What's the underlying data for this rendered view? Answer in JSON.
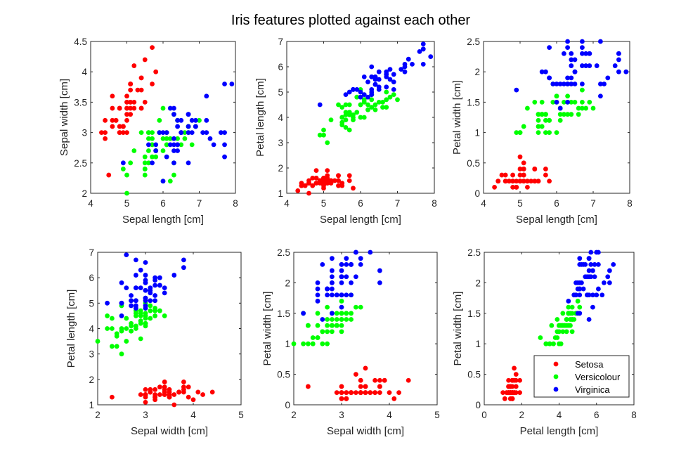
{
  "figure": {
    "title": "Iris features plotted against each other"
  },
  "colors": {
    "Setosa": "#ff0000",
    "Versicolour": "#00ff00",
    "Virginica": "#0000ff"
  },
  "legend": {
    "placement": "bottom-right of last subplot",
    "entries": [
      "Setosa",
      "Versicolour",
      "Virginica"
    ]
  },
  "iris": {
    "Setosa": [
      [
        5.1,
        3.5,
        1.4,
        0.2
      ],
      [
        4.9,
        3.0,
        1.4,
        0.2
      ],
      [
        4.7,
        3.2,
        1.3,
        0.2
      ],
      [
        4.6,
        3.1,
        1.5,
        0.2
      ],
      [
        5.0,
        3.6,
        1.4,
        0.2
      ],
      [
        5.4,
        3.9,
        1.7,
        0.4
      ],
      [
        4.6,
        3.4,
        1.4,
        0.3
      ],
      [
        5.0,
        3.4,
        1.5,
        0.2
      ],
      [
        4.4,
        2.9,
        1.4,
        0.2
      ],
      [
        4.9,
        3.1,
        1.5,
        0.1
      ],
      [
        5.4,
        3.7,
        1.5,
        0.2
      ],
      [
        4.8,
        3.4,
        1.6,
        0.2
      ],
      [
        4.8,
        3.0,
        1.4,
        0.1
      ],
      [
        4.3,
        3.0,
        1.1,
        0.1
      ],
      [
        5.8,
        4.0,
        1.2,
        0.2
      ],
      [
        5.7,
        4.4,
        1.5,
        0.4
      ],
      [
        5.4,
        3.9,
        1.3,
        0.4
      ],
      [
        5.1,
        3.5,
        1.4,
        0.3
      ],
      [
        5.7,
        3.8,
        1.7,
        0.3
      ],
      [
        5.1,
        3.8,
        1.5,
        0.3
      ],
      [
        5.4,
        3.4,
        1.7,
        0.2
      ],
      [
        5.1,
        3.7,
        1.5,
        0.4
      ],
      [
        4.6,
        3.6,
        1.0,
        0.2
      ],
      [
        5.1,
        3.3,
        1.7,
        0.5
      ],
      [
        4.8,
        3.4,
        1.9,
        0.2
      ],
      [
        5.0,
        3.0,
        1.6,
        0.2
      ],
      [
        5.0,
        3.4,
        1.6,
        0.4
      ],
      [
        5.2,
        3.5,
        1.5,
        0.2
      ],
      [
        5.2,
        3.4,
        1.4,
        0.2
      ],
      [
        4.7,
        3.2,
        1.6,
        0.2
      ],
      [
        4.8,
        3.1,
        1.6,
        0.2
      ],
      [
        5.4,
        3.4,
        1.5,
        0.4
      ],
      [
        5.2,
        4.1,
        1.5,
        0.1
      ],
      [
        5.5,
        4.2,
        1.4,
        0.2
      ],
      [
        4.9,
        3.1,
        1.5,
        0.1
      ],
      [
        5.0,
        3.2,
        1.2,
        0.2
      ],
      [
        5.5,
        3.5,
        1.3,
        0.2
      ],
      [
        4.9,
        3.1,
        1.5,
        0.1
      ],
      [
        4.4,
        3.0,
        1.3,
        0.2
      ],
      [
        5.1,
        3.4,
        1.5,
        0.2
      ],
      [
        5.0,
        3.5,
        1.3,
        0.3
      ],
      [
        4.5,
        2.3,
        1.3,
        0.3
      ],
      [
        4.4,
        3.2,
        1.3,
        0.2
      ],
      [
        5.0,
        3.5,
        1.6,
        0.6
      ],
      [
        5.1,
        3.8,
        1.9,
        0.4
      ],
      [
        4.8,
        3.0,
        1.4,
        0.3
      ],
      [
        5.1,
        3.8,
        1.6,
        0.2
      ],
      [
        4.6,
        3.2,
        1.4,
        0.2
      ],
      [
        5.3,
        3.7,
        1.5,
        0.2
      ],
      [
        5.0,
        3.3,
        1.4,
        0.2
      ]
    ],
    "Versicolour": [
      [
        7.0,
        3.2,
        4.7,
        1.4
      ],
      [
        6.4,
        3.2,
        4.5,
        1.5
      ],
      [
        6.9,
        3.1,
        4.9,
        1.5
      ],
      [
        5.5,
        2.3,
        4.0,
        1.3
      ],
      [
        6.5,
        2.8,
        4.6,
        1.5
      ],
      [
        5.7,
        2.8,
        4.5,
        1.3
      ],
      [
        6.3,
        3.3,
        4.7,
        1.6
      ],
      [
        4.9,
        2.4,
        3.3,
        1.0
      ],
      [
        6.6,
        2.9,
        4.6,
        1.3
      ],
      [
        5.2,
        2.7,
        3.9,
        1.4
      ],
      [
        5.0,
        2.0,
        3.5,
        1.0
      ],
      [
        5.9,
        3.0,
        4.2,
        1.5
      ],
      [
        6.0,
        2.2,
        4.0,
        1.0
      ],
      [
        6.1,
        2.9,
        4.7,
        1.4
      ],
      [
        5.6,
        2.9,
        3.6,
        1.3
      ],
      [
        6.7,
        3.1,
        4.4,
        1.4
      ],
      [
        5.6,
        3.0,
        4.5,
        1.5
      ],
      [
        5.8,
        2.7,
        4.1,
        1.0
      ],
      [
        6.2,
        2.2,
        4.5,
        1.5
      ],
      [
        5.6,
        2.5,
        3.9,
        1.1
      ],
      [
        5.9,
        3.2,
        4.8,
        1.8
      ],
      [
        6.1,
        2.8,
        4.0,
        1.3
      ],
      [
        6.3,
        2.5,
        4.9,
        1.5
      ],
      [
        6.1,
        2.8,
        4.7,
        1.2
      ],
      [
        6.4,
        2.9,
        4.3,
        1.3
      ],
      [
        6.6,
        3.0,
        4.4,
        1.4
      ],
      [
        6.8,
        2.8,
        4.8,
        1.4
      ],
      [
        6.7,
        3.0,
        5.0,
        1.7
      ],
      [
        6.0,
        2.9,
        4.5,
        1.5
      ],
      [
        5.7,
        2.6,
        3.5,
        1.0
      ],
      [
        5.5,
        2.4,
        3.8,
        1.1
      ],
      [
        5.5,
        2.4,
        3.7,
        1.0
      ],
      [
        5.8,
        2.7,
        3.9,
        1.2
      ],
      [
        6.0,
        2.7,
        5.1,
        1.6
      ],
      [
        5.4,
        3.0,
        4.5,
        1.5
      ],
      [
        6.0,
        3.4,
        4.5,
        1.6
      ],
      [
        6.7,
        3.1,
        4.7,
        1.5
      ],
      [
        6.3,
        2.3,
        4.4,
        1.3
      ],
      [
        5.6,
        3.0,
        4.1,
        1.3
      ],
      [
        5.5,
        2.5,
        4.0,
        1.3
      ],
      [
        5.5,
        2.6,
        4.4,
        1.2
      ],
      [
        6.1,
        3.0,
        4.6,
        1.4
      ],
      [
        5.8,
        2.6,
        4.0,
        1.2
      ],
      [
        5.0,
        2.3,
        3.3,
        1.0
      ],
      [
        5.6,
        2.7,
        4.2,
        1.3
      ],
      [
        5.7,
        3.0,
        4.2,
        1.2
      ],
      [
        5.7,
        2.9,
        4.2,
        1.3
      ],
      [
        6.2,
        2.9,
        4.3,
        1.3
      ],
      [
        5.1,
        2.5,
        3.0,
        1.1
      ],
      [
        5.7,
        2.8,
        4.1,
        1.3
      ]
    ],
    "Virginica": [
      [
        6.3,
        3.3,
        6.0,
        2.5
      ],
      [
        5.8,
        2.7,
        5.1,
        1.9
      ],
      [
        7.1,
        3.0,
        5.9,
        2.1
      ],
      [
        6.3,
        2.9,
        5.6,
        1.8
      ],
      [
        6.5,
        3.0,
        5.8,
        2.2
      ],
      [
        7.6,
        3.0,
        6.6,
        2.1
      ],
      [
        4.9,
        2.5,
        4.5,
        1.7
      ],
      [
        7.3,
        2.9,
        6.3,
        1.8
      ],
      [
        6.7,
        2.5,
        5.8,
        1.8
      ],
      [
        7.2,
        3.6,
        6.1,
        2.5
      ],
      [
        6.5,
        3.2,
        5.1,
        2.0
      ],
      [
        6.4,
        2.7,
        5.3,
        1.9
      ],
      [
        6.8,
        3.0,
        5.5,
        2.1
      ],
      [
        5.7,
        2.5,
        5.0,
        2.0
      ],
      [
        5.8,
        2.8,
        5.1,
        2.4
      ],
      [
        6.4,
        3.2,
        5.3,
        2.3
      ],
      [
        6.5,
        3.0,
        5.5,
        1.8
      ],
      [
        7.7,
        3.8,
        6.7,
        2.2
      ],
      [
        7.7,
        2.6,
        6.9,
        2.3
      ],
      [
        6.0,
        2.2,
        5.0,
        1.5
      ],
      [
        6.9,
        3.2,
        5.7,
        2.3
      ],
      [
        5.6,
        2.8,
        4.9,
        2.0
      ],
      [
        7.7,
        2.8,
        6.7,
        2.0
      ],
      [
        6.3,
        2.7,
        4.9,
        1.8
      ],
      [
        6.7,
        3.3,
        5.7,
        2.1
      ],
      [
        7.2,
        3.2,
        6.0,
        1.8
      ],
      [
        6.2,
        2.8,
        4.8,
        1.8
      ],
      [
        6.1,
        3.0,
        4.9,
        1.8
      ],
      [
        6.4,
        2.8,
        5.6,
        2.1
      ],
      [
        7.2,
        3.0,
        5.8,
        1.6
      ],
      [
        7.4,
        2.8,
        6.1,
        1.9
      ],
      [
        7.9,
        3.8,
        6.4,
        2.0
      ],
      [
        6.4,
        2.8,
        5.6,
        2.2
      ],
      [
        6.3,
        2.8,
        5.1,
        1.5
      ],
      [
        6.1,
        2.6,
        5.6,
        1.4
      ],
      [
        7.7,
        3.0,
        6.1,
        2.3
      ],
      [
        6.3,
        3.4,
        5.6,
        2.4
      ],
      [
        6.4,
        3.1,
        5.5,
        1.8
      ],
      [
        6.0,
        3.0,
        4.8,
        1.8
      ],
      [
        6.9,
        3.1,
        5.4,
        2.1
      ],
      [
        6.7,
        3.1,
        5.6,
        2.4
      ],
      [
        6.9,
        3.1,
        5.1,
        2.3
      ],
      [
        5.8,
        2.7,
        5.1,
        1.9
      ],
      [
        6.8,
        3.2,
        5.9,
        2.3
      ],
      [
        6.7,
        3.3,
        5.7,
        2.5
      ],
      [
        6.7,
        3.0,
        5.2,
        2.3
      ],
      [
        6.3,
        2.5,
        5.0,
        1.9
      ],
      [
        6.5,
        3.0,
        5.2,
        2.0
      ],
      [
        6.2,
        3.4,
        5.4,
        2.3
      ],
      [
        5.9,
        3.0,
        5.1,
        1.8
      ]
    ]
  },
  "chart_data": [
    {
      "type": "scatter",
      "xlabel": "Sepal length [cm]",
      "ylabel": "Sepal width [cm]",
      "x_feature": 0,
      "y_feature": 1,
      "xlim": [
        4,
        8
      ],
      "ylim": [
        2,
        4.5
      ],
      "xticks": [
        4,
        5,
        6,
        7,
        8
      ],
      "yticks": [
        2,
        2.5,
        3,
        3.5,
        4,
        4.5
      ],
      "xtick_labels": [
        "4",
        "5",
        "6",
        "7",
        "8"
      ],
      "ytick_labels": [
        "2",
        "2.5",
        "3",
        "3.5",
        "4",
        "4.5"
      ],
      "series": [
        "Setosa",
        "Versicolour",
        "Virginica"
      ]
    },
    {
      "type": "scatter",
      "xlabel": "Sepal length [cm]",
      "ylabel": "Petal length [cm]",
      "x_feature": 0,
      "y_feature": 2,
      "xlim": [
        4,
        8
      ],
      "ylim": [
        1,
        7
      ],
      "xticks": [
        4,
        5,
        6,
        7,
        8
      ],
      "yticks": [
        1,
        2,
        3,
        4,
        5,
        6,
        7
      ],
      "xtick_labels": [
        "4",
        "5",
        "6",
        "7",
        "8"
      ],
      "ytick_labels": [
        "1",
        "2",
        "3",
        "4",
        "5",
        "6",
        "7"
      ],
      "series": [
        "Setosa",
        "Versicolour",
        "Virginica"
      ]
    },
    {
      "type": "scatter",
      "xlabel": "Sepal length [cm]",
      "ylabel": "Petal width [cm]",
      "x_feature": 0,
      "y_feature": 3,
      "xlim": [
        4,
        8
      ],
      "ylim": [
        0,
        2.5
      ],
      "xticks": [
        4,
        5,
        6,
        7,
        8
      ],
      "yticks": [
        0,
        0.5,
        1,
        1.5,
        2,
        2.5
      ],
      "xtick_labels": [
        "4",
        "5",
        "6",
        "7",
        "8"
      ],
      "ytick_labels": [
        "0",
        "0.5",
        "1",
        "1.5",
        "2",
        "2.5"
      ],
      "series": [
        "Setosa",
        "Versicolour",
        "Virginica"
      ]
    },
    {
      "type": "scatter",
      "xlabel": "Sepal width [cm]",
      "ylabel": "Petal length [cm]",
      "x_feature": 1,
      "y_feature": 2,
      "xlim": [
        2,
        5
      ],
      "ylim": [
        1,
        7
      ],
      "xticks": [
        2,
        3,
        4,
        5
      ],
      "yticks": [
        1,
        2,
        3,
        4,
        5,
        6,
        7
      ],
      "xtick_labels": [
        "2",
        "3",
        "4",
        "5"
      ],
      "ytick_labels": [
        "1",
        "2",
        "3",
        "4",
        "5",
        "6",
        "7"
      ],
      "series": [
        "Setosa",
        "Versicolour",
        "Virginica"
      ]
    },
    {
      "type": "scatter",
      "xlabel": "Sepal width [cm]",
      "ylabel": "Petal width [cm]",
      "x_feature": 1,
      "y_feature": 3,
      "xlim": [
        2,
        5
      ],
      "ylim": [
        0,
        2.5
      ],
      "xticks": [
        2,
        3,
        4,
        5
      ],
      "yticks": [
        0,
        0.5,
        1,
        1.5,
        2,
        2.5
      ],
      "xtick_labels": [
        "2",
        "3",
        "4",
        "5"
      ],
      "ytick_labels": [
        "0",
        "0.5",
        "1",
        "1.5",
        "2",
        "2.5"
      ],
      "series": [
        "Setosa",
        "Versicolour",
        "Virginica"
      ]
    },
    {
      "type": "scatter",
      "xlabel": "Petal length [cm]",
      "ylabel": "Petal width [cm]",
      "x_feature": 2,
      "y_feature": 3,
      "xlim": [
        0,
        8
      ],
      "ylim": [
        0,
        2.5
      ],
      "xticks": [
        0,
        2,
        4,
        6,
        8
      ],
      "yticks": [
        0,
        0.5,
        1,
        1.5,
        2,
        2.5
      ],
      "xtick_labels": [
        "0",
        "2",
        "4",
        "6",
        "8"
      ],
      "ytick_labels": [
        "0",
        "0.5",
        "1",
        "1.5",
        "2",
        "2.5"
      ],
      "series": [
        "Setosa",
        "Versicolour",
        "Virginica"
      ],
      "has_legend": true
    }
  ]
}
